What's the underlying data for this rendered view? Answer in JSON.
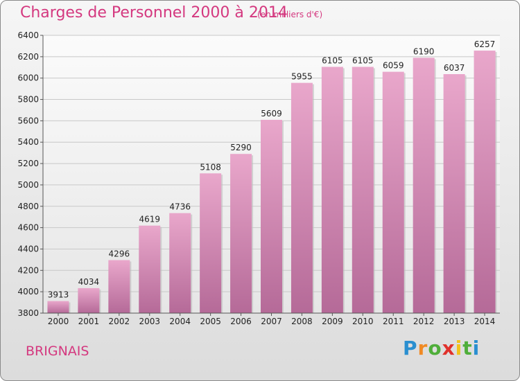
{
  "header": {
    "title": "Charges de Personnel 2000 à 2014",
    "subtitle": "(en milliers d'€)"
  },
  "footer": {
    "city": "BRIGNAIS",
    "logo_text": "Proxiti"
  },
  "colors": {
    "title": "#d4387f",
    "bar_top": "#e9a7cb",
    "bar_bottom": "#b56a98",
    "grid": "#c8c8c8"
  },
  "chart_data": {
    "type": "bar",
    "title": "Charges de Personnel 2000 à 2014",
    "subtitle": "(en milliers d'€)",
    "xlabel": "",
    "ylabel": "",
    "categories": [
      "2000",
      "2001",
      "2002",
      "2003",
      "2004",
      "2005",
      "2006",
      "2007",
      "2008",
      "2009",
      "2010",
      "2011",
      "2012",
      "2013",
      "2014"
    ],
    "values": [
      3913,
      4034,
      4296,
      4619,
      4736,
      5108,
      5290,
      5609,
      5955,
      6105,
      6105,
      6059,
      6190,
      6037,
      6257
    ],
    "ylim": [
      3800,
      6400
    ],
    "yticks": [
      3800,
      4000,
      4200,
      4400,
      4600,
      4800,
      5000,
      5200,
      5400,
      5600,
      5800,
      6000,
      6200,
      6400
    ],
    "grid": true,
    "legend": "none"
  }
}
